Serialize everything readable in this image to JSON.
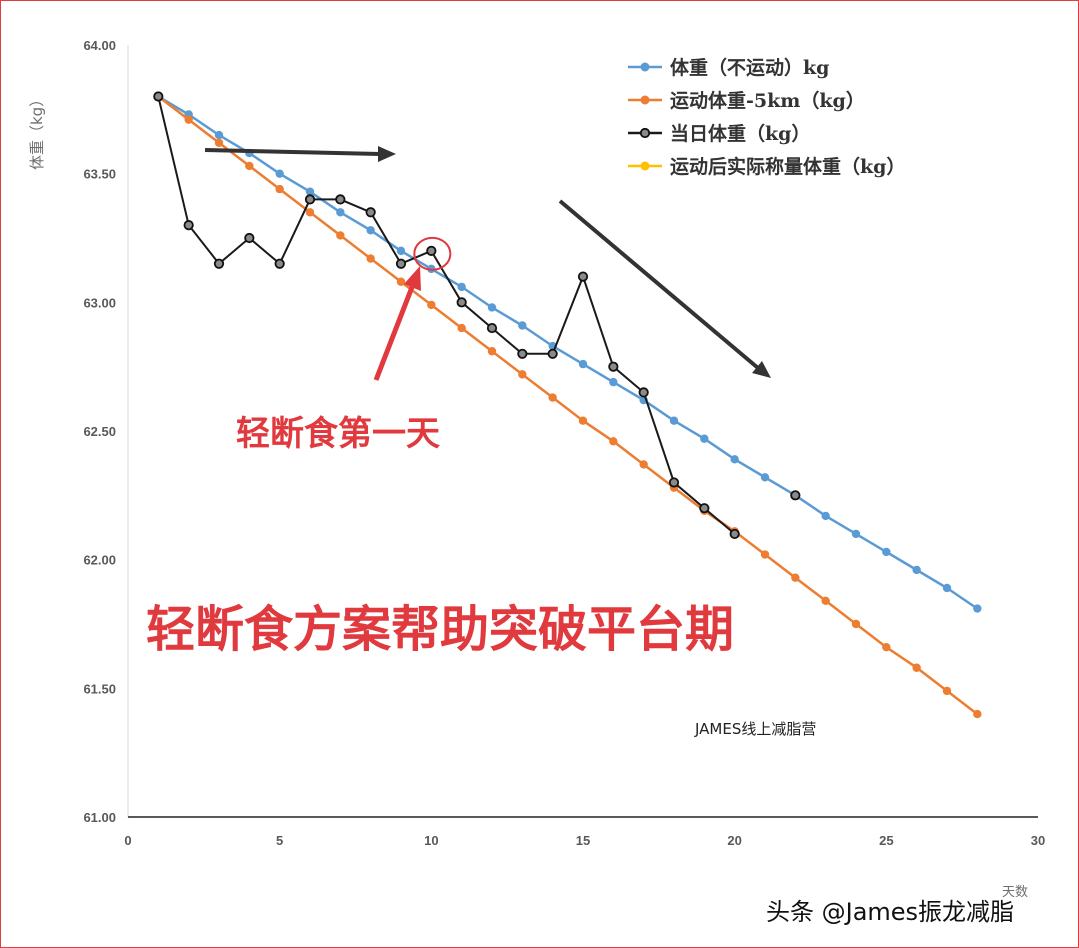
{
  "chart_data": {
    "type": "line",
    "title": "",
    "xlabel": "天数",
    "ylabel": "体重（kg）",
    "xlim": [
      0,
      30
    ],
    "ylim": [
      61.0,
      64.0
    ],
    "x_ticks": [
      "0",
      "5",
      "10",
      "15",
      "20",
      "25",
      "30"
    ],
    "y_ticks": [
      "61.00",
      "61.50",
      "62.00",
      "62.50",
      "63.00",
      "63.50",
      "64.00"
    ],
    "legend_position": "top-right",
    "series": [
      {
        "name": "体重（不运动）kg",
        "color": "#5b9bd5",
        "x": [
          1,
          2,
          3,
          4,
          5,
          6,
          7,
          8,
          9,
          10,
          11,
          12,
          13,
          14,
          15,
          16,
          17,
          18,
          19,
          20,
          21,
          22,
          23,
          24,
          25,
          26,
          27,
          28
        ],
        "y": [
          63.8,
          63.73,
          63.65,
          63.58,
          63.5,
          63.43,
          63.35,
          63.28,
          63.2,
          63.13,
          63.06,
          62.98,
          62.91,
          62.83,
          62.76,
          62.69,
          62.62,
          62.54,
          62.47,
          62.39,
          62.32,
          62.25,
          62.17,
          62.1,
          62.03,
          61.96,
          61.89,
          61.81
        ]
      },
      {
        "name": "运动体重-5km（kg）",
        "color": "#ed7d31",
        "x": [
          1,
          2,
          3,
          4,
          5,
          6,
          7,
          8,
          9,
          10,
          11,
          12,
          13,
          14,
          15,
          16,
          17,
          18,
          19,
          20,
          21,
          22,
          23,
          24,
          25,
          26,
          27,
          28
        ],
        "y": [
          63.8,
          63.71,
          63.62,
          63.53,
          63.44,
          63.35,
          63.26,
          63.17,
          63.08,
          62.99,
          62.9,
          62.81,
          62.72,
          62.63,
          62.54,
          62.46,
          62.37,
          62.28,
          62.19,
          62.11,
          62.02,
          61.93,
          61.84,
          61.75,
          61.66,
          61.58,
          61.49,
          61.4
        ]
      },
      {
        "name": "当日体重（kg）",
        "color": "#1a1a1a",
        "x": [
          1,
          2,
          3,
          4,
          5,
          6,
          7,
          8,
          9,
          10,
          11,
          12,
          13,
          14,
          15,
          16,
          17,
          18,
          19,
          20
        ],
        "y": [
          63.8,
          63.3,
          63.15,
          63.25,
          63.15,
          63.4,
          63.4,
          63.35,
          63.15,
          63.2,
          63.0,
          62.9,
          62.8,
          62.8,
          63.1,
          62.75,
          62.65,
          62.3,
          62.2,
          62.1
        ],
        "extra_points": [
          {
            "x": 22,
            "y": 62.25
          }
        ]
      },
      {
        "name": "运动后实际称量体重（kg）",
        "color": "#ffc000",
        "x": [],
        "y": []
      }
    ],
    "annotations": {
      "first_day_label": "轻断食第一天",
      "headline": "轻断食方案帮助突破平台期",
      "first_day_x": 10,
      "first_day_y": 63.2
    }
  },
  "watermark": "JAMES线上减脂营",
  "credit": "头条 @James振龙减脂"
}
